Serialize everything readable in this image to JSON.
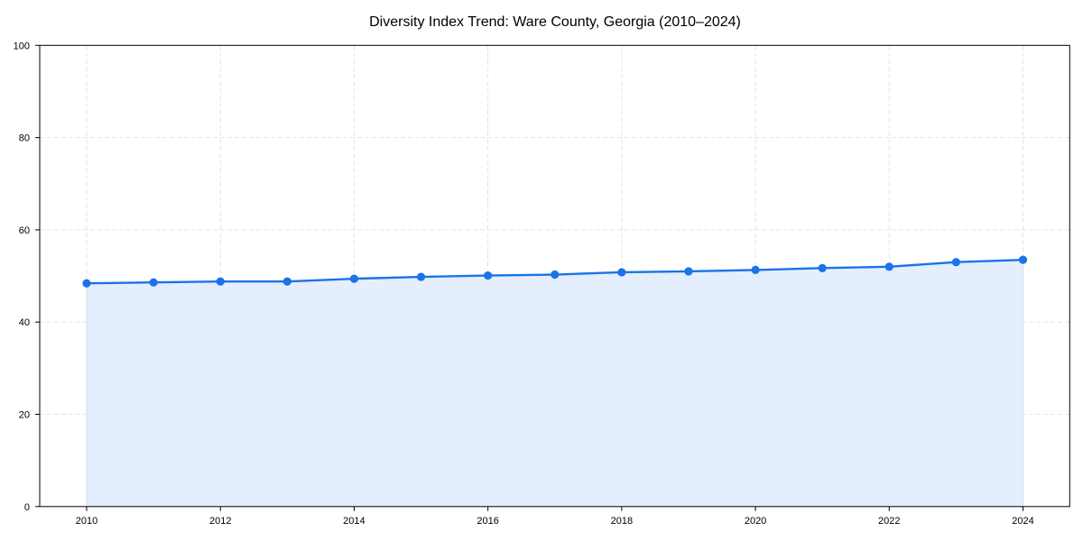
{
  "chart_data": {
    "type": "line",
    "title": "Diversity Index Trend: Ware County, Georgia (2010–2024)",
    "xlabel": "",
    "ylabel": "",
    "x": [
      2010,
      2011,
      2012,
      2013,
      2014,
      2015,
      2016,
      2017,
      2018,
      2019,
      2020,
      2021,
      2022,
      2023,
      2024
    ],
    "series": [
      {
        "name": "Diversity Index",
        "values": [
          48.4,
          48.6,
          48.8,
          48.8,
          49.4,
          49.8,
          50.1,
          50.3,
          50.8,
          51.0,
          51.3,
          51.7,
          52.0,
          53.0,
          53.5
        ],
        "color": "#1a73e8",
        "fill": true,
        "fill_color": "#e4eefc",
        "markers": true
      }
    ],
    "ylim": [
      0,
      100
    ],
    "xlim": [
      2009.3,
      2024.7
    ],
    "yticks": [
      0,
      20,
      40,
      60,
      80,
      100
    ],
    "xticks": [
      2010,
      2012,
      2014,
      2016,
      2018,
      2020,
      2022,
      2024
    ],
    "grid": true,
    "legend": null
  },
  "colors": {
    "line": "#1a73e8",
    "fill": "#e4eefc",
    "fill_edge": "#c9dcf3",
    "grid": "#dcdcdc",
    "axis": "#000000"
  }
}
